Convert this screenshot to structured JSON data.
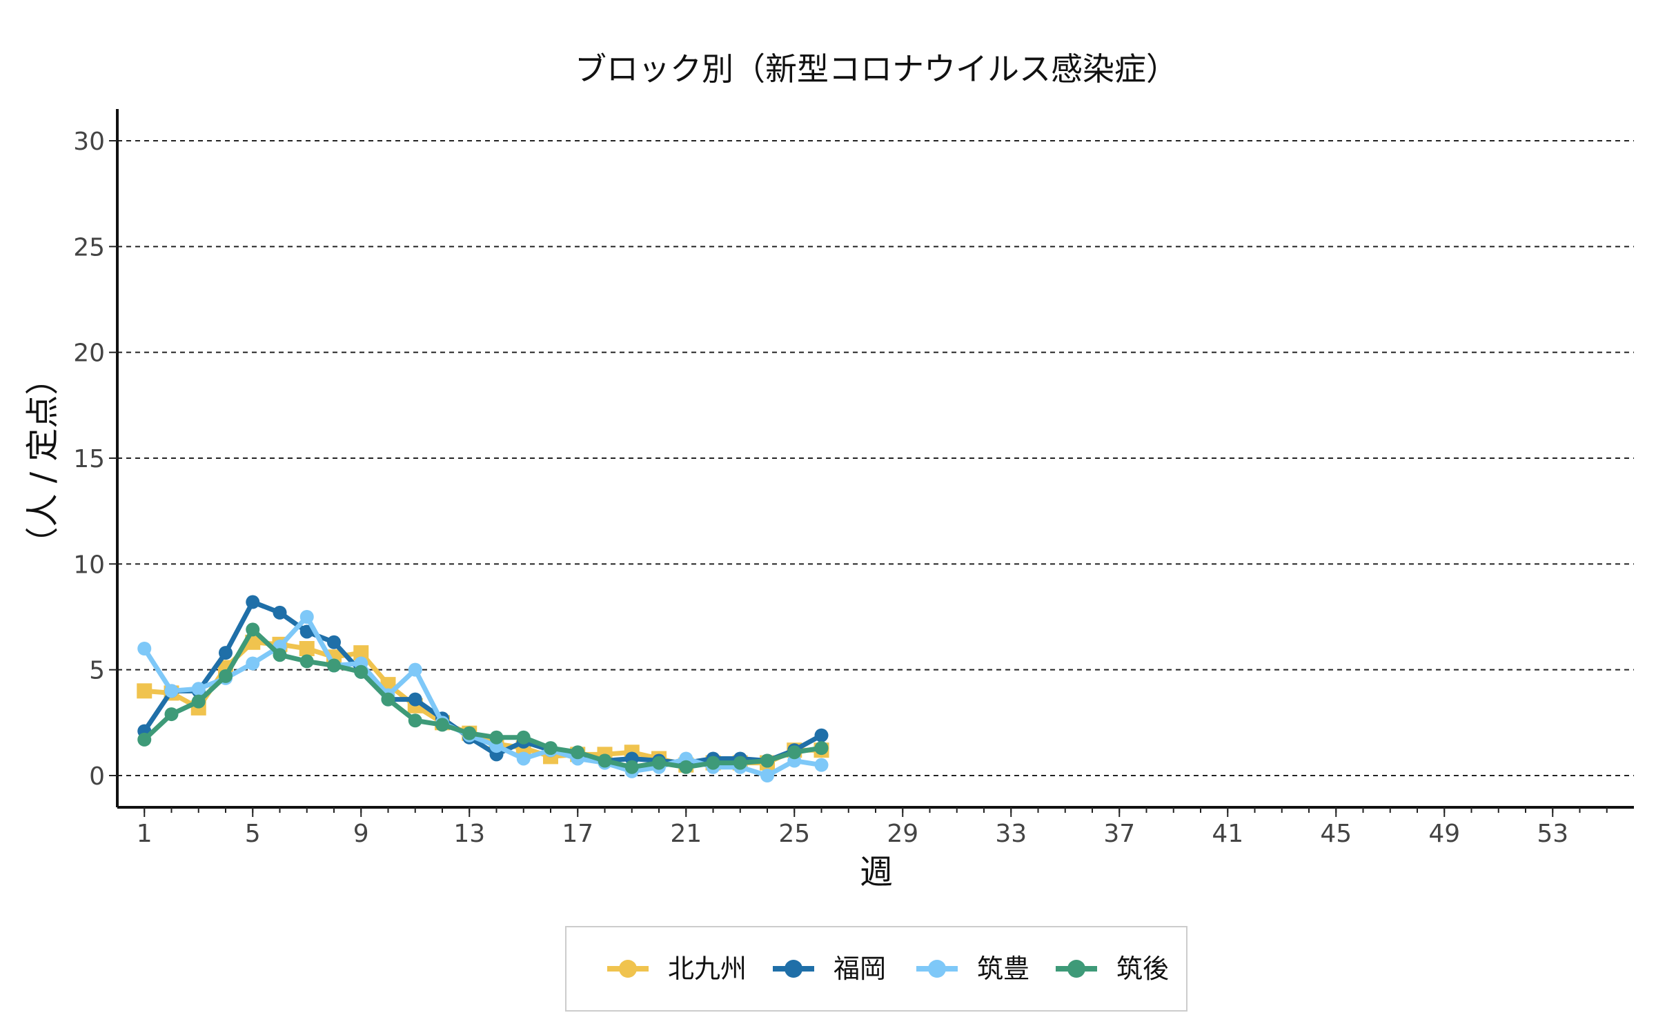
{
  "chart_data": {
    "type": "line",
    "title": "ブロック別（新型コロナウイルス感染症）",
    "xlabel": "週",
    "ylabel": "（人 / 定点）",
    "xlim": [
      0,
      56
    ],
    "ylim": [
      -1.5,
      31.5
    ],
    "x_ticks": [
      1,
      5,
      9,
      13,
      17,
      21,
      25,
      29,
      33,
      37,
      41,
      45,
      49,
      53
    ],
    "y_ticks": [
      0,
      5,
      10,
      15,
      20,
      25,
      30
    ],
    "grid": "horizontal-dashed",
    "legend_position": "bottom",
    "x": [
      1,
      2,
      3,
      4,
      5,
      6,
      7,
      8,
      9,
      10,
      11,
      12,
      13,
      14,
      15,
      16,
      17,
      18,
      19,
      20,
      21,
      22,
      23,
      24,
      25,
      26
    ],
    "series": [
      {
        "name": "北九州",
        "color": "#f0c34e",
        "marker": "square",
        "values": [
          4.0,
          3.9,
          3.2,
          5.1,
          6.3,
          6.2,
          6.0,
          5.6,
          5.8,
          4.3,
          3.3,
          2.5,
          2.0,
          1.5,
          1.3,
          0.9,
          1.0,
          1.0,
          1.1,
          0.8,
          0.5,
          0.6,
          0.6,
          0.6,
          1.2,
          1.2
        ]
      },
      {
        "name": "福岡",
        "color": "#1f6fa8",
        "marker": "circle",
        "values": [
          2.1,
          4.0,
          4.0,
          5.8,
          8.2,
          7.7,
          6.8,
          6.3,
          4.9,
          3.6,
          3.6,
          2.7,
          1.8,
          1.0,
          1.6,
          1.2,
          0.9,
          0.7,
          0.8,
          0.7,
          0.6,
          0.8,
          0.8,
          0.7,
          1.2,
          1.9
        ]
      },
      {
        "name": "筑豊",
        "color": "#7ec8f8",
        "marker": "circle",
        "values": [
          6.0,
          4.0,
          4.1,
          4.6,
          5.3,
          6.1,
          7.5,
          5.2,
          5.3,
          3.8,
          5.0,
          2.5,
          1.9,
          1.4,
          0.8,
          1.2,
          0.8,
          0.6,
          0.2,
          0.4,
          0.8,
          0.4,
          0.4,
          0.0,
          0.7,
          0.5
        ]
      },
      {
        "name": "筑後",
        "color": "#3e9a78",
        "marker": "circle",
        "values": [
          1.7,
          2.9,
          3.5,
          4.7,
          6.9,
          5.7,
          5.4,
          5.2,
          4.9,
          3.6,
          2.6,
          2.4,
          2.0,
          1.8,
          1.8,
          1.3,
          1.1,
          0.7,
          0.4,
          0.6,
          0.4,
          0.6,
          0.6,
          0.7,
          1.1,
          1.3
        ]
      }
    ]
  }
}
